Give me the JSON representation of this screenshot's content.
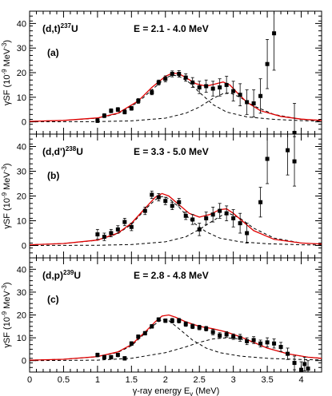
{
  "chart_data": {
    "type": "scatter",
    "x_label": "γ-ray energy E",
    "x_label_sub": "γ",
    "x_label_unit": "(MeV)",
    "xlim": [
      0,
      4.3
    ],
    "x_ticks": [
      0,
      0.5,
      1,
      1.5,
      2,
      2.5,
      3,
      3.5,
      4
    ],
    "x_tick_labels": [
      "0",
      "0.5",
      "1",
      "1.5",
      "2",
      "2.5",
      "3",
      "3.5",
      "4"
    ],
    "colors": {
      "total_fit": "#e00000",
      "components": "#000000",
      "data": "#000000"
    },
    "panels": [
      {
        "reaction": "(d,t)",
        "nucleus_mass": "237",
        "nucleus": "U",
        "energy": "E = 2.1 - 4.0 MeV",
        "panel_label": "(a)",
        "y_label": "γSF (10",
        "y_label_exp": "-9",
        "y_label_unit": " MeV",
        "y_label_unit_exp": "-3",
        "y_label_close": ")",
        "ylim": [
          -5,
          45
        ],
        "y_ticks": [
          0,
          10,
          20,
          30,
          40
        ],
        "y_tick_labels": [
          "0",
          "10",
          "20",
          "30",
          "40"
        ],
        "points": [
          {
            "x": 1.0,
            "y": 0.5,
            "err": 0.8
          },
          {
            "x": 1.1,
            "y": 2.5,
            "err": 0.8
          },
          {
            "x": 1.2,
            "y": 4.5,
            "err": 0.8
          },
          {
            "x": 1.3,
            "y": 5.0,
            "err": 0.8
          },
          {
            "x": 1.4,
            "y": 4.0,
            "err": 0.8
          },
          {
            "x": 1.5,
            "y": 5.5,
            "err": 0.8
          },
          {
            "x": 1.6,
            "y": 8.5,
            "err": 1.0
          },
          {
            "x": 1.8,
            "y": 12.0,
            "err": 1.0
          },
          {
            "x": 1.9,
            "y": 16.0,
            "err": 1.0
          },
          {
            "x": 2.0,
            "y": 17.5,
            "err": 1.2
          },
          {
            "x": 2.1,
            "y": 19.5,
            "err": 1.2
          },
          {
            "x": 2.2,
            "y": 19.5,
            "err": 1.3
          },
          {
            "x": 2.3,
            "y": 18.0,
            "err": 1.5
          },
          {
            "x": 2.4,
            "y": 16.0,
            "err": 2.0
          },
          {
            "x": 2.5,
            "y": 14.0,
            "err": 2.5
          },
          {
            "x": 2.6,
            "y": 14.5,
            "err": 2.5
          },
          {
            "x": 2.7,
            "y": 13.5,
            "err": 3.0
          },
          {
            "x": 2.8,
            "y": 14.0,
            "err": 3.5
          },
          {
            "x": 2.9,
            "y": 15.0,
            "err": 3.5
          },
          {
            "x": 3.0,
            "y": 12.5,
            "err": 4.0
          },
          {
            "x": 3.1,
            "y": 11.0,
            "err": 4.5
          },
          {
            "x": 3.2,
            "y": 8.0,
            "err": 5.0
          },
          {
            "x": 3.3,
            "y": 7.5,
            "err": 5.5
          },
          {
            "x": 3.4,
            "y": 10.5,
            "err": 7.0
          },
          {
            "x": 3.5,
            "y": 23.5,
            "err": 10.0
          },
          {
            "x": 3.6,
            "y": 36.0,
            "err": 15.0
          },
          {
            "x": 3.9,
            "y": -4.5,
            "err": 12.0
          }
        ],
        "total_fit": {
          "x": [
            0,
            0.5,
            1,
            1.3,
            1.6,
            1.8,
            2.0,
            2.1,
            2.2,
            2.3,
            2.45,
            2.6,
            2.75,
            2.85,
            2.95,
            3.05,
            3.2,
            3.4,
            3.7,
            4.0,
            4.3
          ],
          "y": [
            0.2,
            0.6,
            1.6,
            3.5,
            8.5,
            14.0,
            18.5,
            19.8,
            19.6,
            18.0,
            15.5,
            14.5,
            15.5,
            16.2,
            15.0,
            12.0,
            8.0,
            4.5,
            2.2,
            1.1,
            0.6
          ]
        },
        "components": [
          {
            "x": [
              0,
              0.5,
              1,
              1.3,
              1.6,
              1.8,
              2.0,
              2.1,
              2.2,
              2.35,
              2.5,
              2.7,
              2.9,
              3.2,
              3.6,
              4.0,
              4.3
            ],
            "y": [
              0.2,
              0.6,
              1.5,
              3.3,
              8.0,
              13.0,
              17.8,
              19.0,
              18.6,
              16.0,
              12.0,
              7.0,
              4.0,
              2.0,
              1.0,
              0.5,
              0.3
            ]
          },
          {
            "x": [
              0,
              1,
              1.5,
              2.0,
              2.3,
              2.5,
              2.7,
              2.85,
              2.95,
              3.1,
              3.3,
              3.6,
              4.0,
              4.3
            ],
            "y": [
              0,
              0.1,
              0.4,
              1.5,
              3.5,
              6.0,
              9.5,
              11.5,
              11.8,
              10.0,
              6.5,
              3.0,
              1.0,
              0.5
            ]
          }
        ]
      },
      {
        "reaction": "(d,d')",
        "nucleus_mass": "238",
        "nucleus": "U",
        "energy": "E = 3.3 - 5.0 MeV",
        "panel_label": "(b)",
        "y_label": "γSF (10",
        "y_label_exp": "-9",
        "y_label_unit": " MeV",
        "y_label_unit_exp": "-3",
        "y_label_close": ")",
        "ylim": [
          -5,
          45
        ],
        "y_ticks": [
          0,
          10,
          20,
          30,
          40
        ],
        "y_tick_labels": [
          "0",
          "10",
          "20",
          "30",
          "40"
        ],
        "points": [
          {
            "x": 1.0,
            "y": 4.5,
            "err": 2.0
          },
          {
            "x": 1.1,
            "y": 3.5,
            "err": 1.5
          },
          {
            "x": 1.2,
            "y": 5.0,
            "err": 1.5
          },
          {
            "x": 1.3,
            "y": 6.5,
            "err": 1.5
          },
          {
            "x": 1.4,
            "y": 9.5,
            "err": 1.5
          },
          {
            "x": 1.5,
            "y": 7.5,
            "err": 1.5
          },
          {
            "x": 1.7,
            "y": 14.0,
            "err": 1.5
          },
          {
            "x": 1.8,
            "y": 20.5,
            "err": 1.5
          },
          {
            "x": 1.9,
            "y": 19.5,
            "err": 1.5
          },
          {
            "x": 2.0,
            "y": 18.0,
            "err": 1.5
          },
          {
            "x": 2.1,
            "y": 16.0,
            "err": 1.5
          },
          {
            "x": 2.2,
            "y": 17.5,
            "err": 1.5
          },
          {
            "x": 2.3,
            "y": 12.0,
            "err": 1.5
          },
          {
            "x": 2.4,
            "y": 10.5,
            "err": 2.0
          },
          {
            "x": 2.5,
            "y": 6.5,
            "err": 2.5
          },
          {
            "x": 2.6,
            "y": 11.0,
            "err": 2.5
          },
          {
            "x": 2.7,
            "y": 12.5,
            "err": 3.0
          },
          {
            "x": 2.8,
            "y": 14.0,
            "err": 3.0
          },
          {
            "x": 2.9,
            "y": 13.0,
            "err": 3.0
          },
          {
            "x": 3.0,
            "y": 11.0,
            "err": 3.5
          },
          {
            "x": 3.1,
            "y": 9.0,
            "err": 4.0
          },
          {
            "x": 3.2,
            "y": 5.0,
            "err": 4.0
          },
          {
            "x": 3.4,
            "y": 17.5,
            "err": 6.0
          },
          {
            "x": 3.5,
            "y": 35.0,
            "err": 10.0
          },
          {
            "x": 3.8,
            "y": 38.5,
            "err": 10.0
          },
          {
            "x": 3.9,
            "y": 34.0,
            "err": 10.0
          }
        ],
        "total_fit": {
          "x": [
            0,
            0.5,
            1,
            1.3,
            1.5,
            1.7,
            1.85,
            1.95,
            2.05,
            2.2,
            2.35,
            2.5,
            2.65,
            2.8,
            2.9,
            3.0,
            3.15,
            3.3,
            3.6,
            4.0,
            4.3
          ],
          "y": [
            0.3,
            0.8,
            2.2,
            5.0,
            9.0,
            15.0,
            19.5,
            21.0,
            20.0,
            16.5,
            13.0,
            11.5,
            12.5,
            14.5,
            14.8,
            13.0,
            9.5,
            6.0,
            2.5,
            1.0,
            0.6
          ]
        },
        "components": [
          {
            "x": [
              0,
              0.5,
              1,
              1.3,
              1.5,
              1.7,
              1.85,
              1.95,
              2.05,
              2.2,
              2.4,
              2.6,
              2.8,
              3.1,
              3.5,
              4.0,
              4.3
            ],
            "y": [
              0.3,
              0.8,
              2.1,
              4.8,
              8.5,
              14.5,
              18.5,
              19.8,
              19.0,
              15.5,
              9.5,
              5.5,
              3.0,
              1.5,
              0.7,
              0.3,
              0.2
            ]
          },
          {
            "x": [
              0,
              1,
              1.5,
              2.0,
              2.3,
              2.5,
              2.7,
              2.85,
              2.95,
              3.1,
              3.3,
              3.6,
              4.0,
              4.3
            ],
            "y": [
              0,
              0.1,
              0.4,
              1.5,
              3.5,
              6.5,
              10.0,
              12.5,
              12.8,
              11.0,
              7.0,
              3.0,
              1.0,
              0.5
            ]
          }
        ]
      },
      {
        "reaction": "(d,p)",
        "nucleus_mass": "239",
        "nucleus": "U",
        "energy": "E = 2.8 - 4.8 MeV",
        "panel_label": "(c)",
        "y_label": "γSF (10",
        "y_label_exp": "-9",
        "y_label_unit": " MeV",
        "y_label_unit_exp": "-3",
        "y_label_close": ")",
        "ylim": [
          -5,
          45
        ],
        "y_ticks": [
          0,
          10,
          20,
          30,
          40
        ],
        "y_tick_labels": [
          "0",
          "10",
          "20",
          "30",
          "40"
        ],
        "points": [
          {
            "x": 1.0,
            "y": 2.5,
            "err": 0.8
          },
          {
            "x": 1.1,
            "y": 1.5,
            "err": 0.8
          },
          {
            "x": 1.2,
            "y": 1.5,
            "err": 0.8
          },
          {
            "x": 1.3,
            "y": 2.5,
            "err": 0.8
          },
          {
            "x": 1.4,
            "y": 1.0,
            "err": 0.8
          },
          {
            "x": 1.5,
            "y": 7.5,
            "err": 0.8
          },
          {
            "x": 1.6,
            "y": 10.5,
            "err": 0.8
          },
          {
            "x": 1.7,
            "y": 12.0,
            "err": 0.8
          },
          {
            "x": 1.8,
            "y": 15.0,
            "err": 0.8
          },
          {
            "x": 1.9,
            "y": 18.0,
            "err": 0.8
          },
          {
            "x": 2.0,
            "y": 17.5,
            "err": 0.8
          },
          {
            "x": 2.1,
            "y": 17.5,
            "err": 1.0
          },
          {
            "x": 2.2,
            "y": 17.5,
            "err": 1.0
          },
          {
            "x": 2.3,
            "y": 16.0,
            "err": 1.0
          },
          {
            "x": 2.4,
            "y": 15.0,
            "err": 1.0
          },
          {
            "x": 2.5,
            "y": 14.5,
            "err": 1.0
          },
          {
            "x": 2.6,
            "y": 14.0,
            "err": 1.0
          },
          {
            "x": 2.7,
            "y": 12.5,
            "err": 1.2
          },
          {
            "x": 2.8,
            "y": 11.0,
            "err": 1.2
          },
          {
            "x": 2.9,
            "y": 11.5,
            "err": 1.2
          },
          {
            "x": 3.0,
            "y": 10.5,
            "err": 1.2
          },
          {
            "x": 3.1,
            "y": 10.0,
            "err": 1.5
          },
          {
            "x": 3.2,
            "y": 8.5,
            "err": 1.5
          },
          {
            "x": 3.3,
            "y": 9.0,
            "err": 1.5
          },
          {
            "x": 3.4,
            "y": 7.5,
            "err": 1.5
          },
          {
            "x": 3.5,
            "y": 8.0,
            "err": 2.0
          },
          {
            "x": 3.6,
            "y": 7.5,
            "err": 2.0
          },
          {
            "x": 3.7,
            "y": 6.0,
            "err": 2.0
          },
          {
            "x": 3.8,
            "y": 3.0,
            "err": 2.5
          },
          {
            "x": 3.9,
            "y": -1.0,
            "err": 3.0
          },
          {
            "x": 4.0,
            "y": -4.0,
            "err": 3.5
          },
          {
            "x": 4.05,
            "y": -1.5,
            "err": 3.0
          },
          {
            "x": 4.1,
            "y": -3.5,
            "err": 3.5
          }
        ],
        "total_fit": {
          "x": [
            0,
            0.5,
            1,
            1.3,
            1.5,
            1.7,
            1.85,
            1.95,
            2.05,
            2.15,
            2.3,
            2.5,
            2.7,
            2.9,
            3.1,
            3.3,
            3.5,
            3.8,
            4.1,
            4.3
          ],
          "y": [
            0.2,
            0.6,
            1.8,
            3.8,
            7.0,
            12.5,
            17.0,
            19.5,
            20.0,
            19.0,
            17.0,
            15.0,
            14.0,
            12.5,
            10.5,
            8.0,
            5.5,
            3.0,
            1.5,
            1.0
          ]
        },
        "components": [
          {
            "x": [
              0,
              0.5,
              1,
              1.3,
              1.5,
              1.7,
              1.85,
              1.95,
              2.05,
              2.2,
              2.4,
              2.6,
              2.8,
              3.1,
              3.5,
              4.0,
              4.3
            ],
            "y": [
              0.2,
              0.6,
              1.7,
              3.6,
              6.5,
              12.0,
              16.0,
              18.0,
              17.5,
              14.0,
              9.0,
              5.5,
              3.5,
              2.0,
              1.0,
              0.5,
              0.3
            ]
          },
          {
            "x": [
              0,
              1,
              1.5,
              2.0,
              2.3,
              2.5,
              2.7,
              2.9,
              3.1,
              3.3,
              3.5,
              3.8,
              4.1,
              4.3
            ],
            "y": [
              0,
              0.2,
              1.0,
              3.5,
              6.0,
              8.0,
              9.5,
              10.0,
              9.5,
              8.0,
              5.5,
              3.0,
              1.5,
              1.0
            ]
          }
        ]
      }
    ]
  }
}
